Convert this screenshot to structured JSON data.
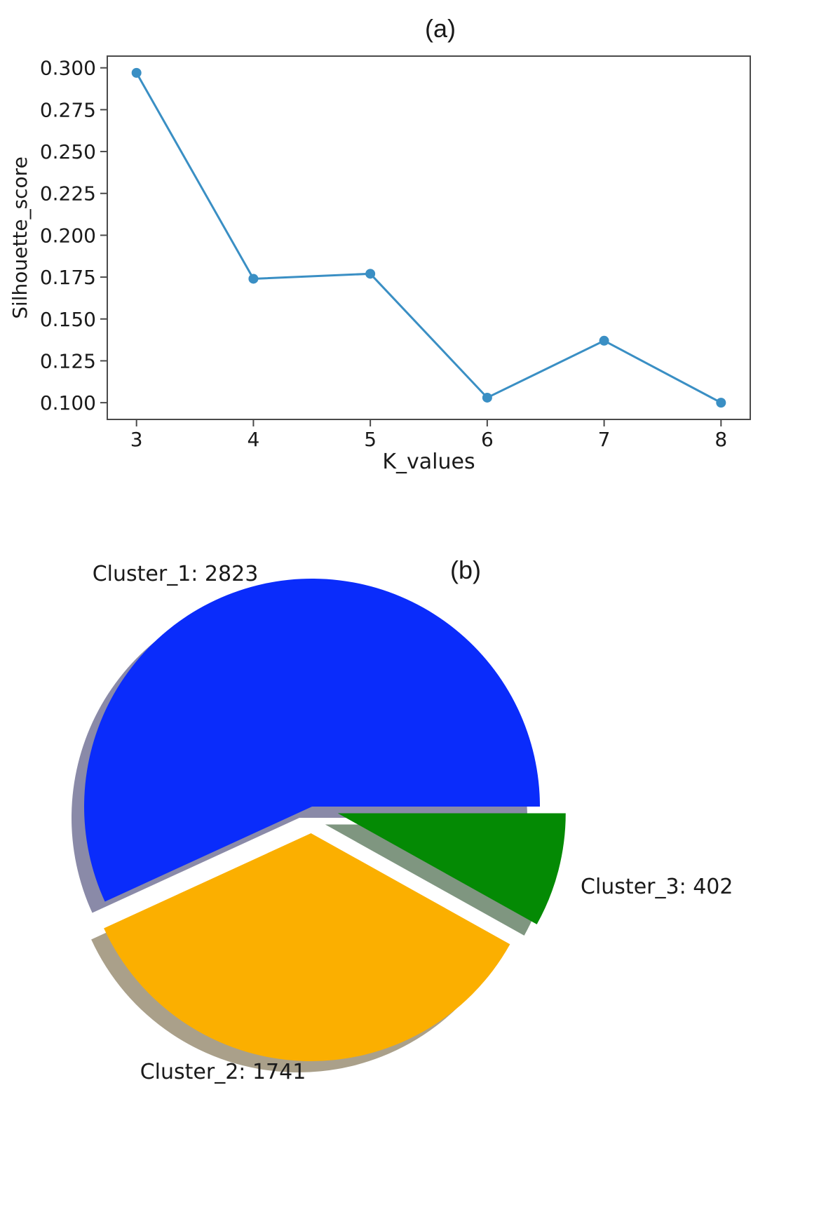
{
  "panels": {
    "a_label": "(a)",
    "b_label": "(b)"
  },
  "chart_data": [
    {
      "type": "line",
      "panel": "(a)",
      "title": "",
      "xlabel": "K_values",
      "ylabel": "Silhouette_score",
      "x": [
        3,
        4,
        5,
        6,
        7,
        8
      ],
      "y": [
        0.297,
        0.174,
        0.177,
        0.103,
        0.137,
        0.1
      ],
      "xticks": [
        3,
        4,
        5,
        6,
        7,
        8
      ],
      "yticks": [
        0.1,
        0.125,
        0.15,
        0.175,
        0.2,
        0.225,
        0.25,
        0.275,
        0.3
      ],
      "yticklabels": [
        "0.100",
        "0.125",
        "0.150",
        "0.175",
        "0.200",
        "0.225",
        "0.250",
        "0.275",
        "0.300"
      ],
      "xlim": [
        2.75,
        8.25
      ],
      "ylim": [
        0.09,
        0.307
      ],
      "marker": "circle",
      "grid": false,
      "color": "#3a8fc4"
    },
    {
      "type": "pie",
      "panel": "(b)",
      "title": "",
      "shadow": true,
      "slices": [
        {
          "label": "Cluster_1: 2823",
          "value": 2823,
          "color": "#0a2cfb"
        },
        {
          "label": "Cluster_2: 1741",
          "value": 1741,
          "color": "#fbaf00"
        },
        {
          "label": "Cluster_3: 402",
          "value": 402,
          "color": "#048a04"
        }
      ]
    }
  ]
}
